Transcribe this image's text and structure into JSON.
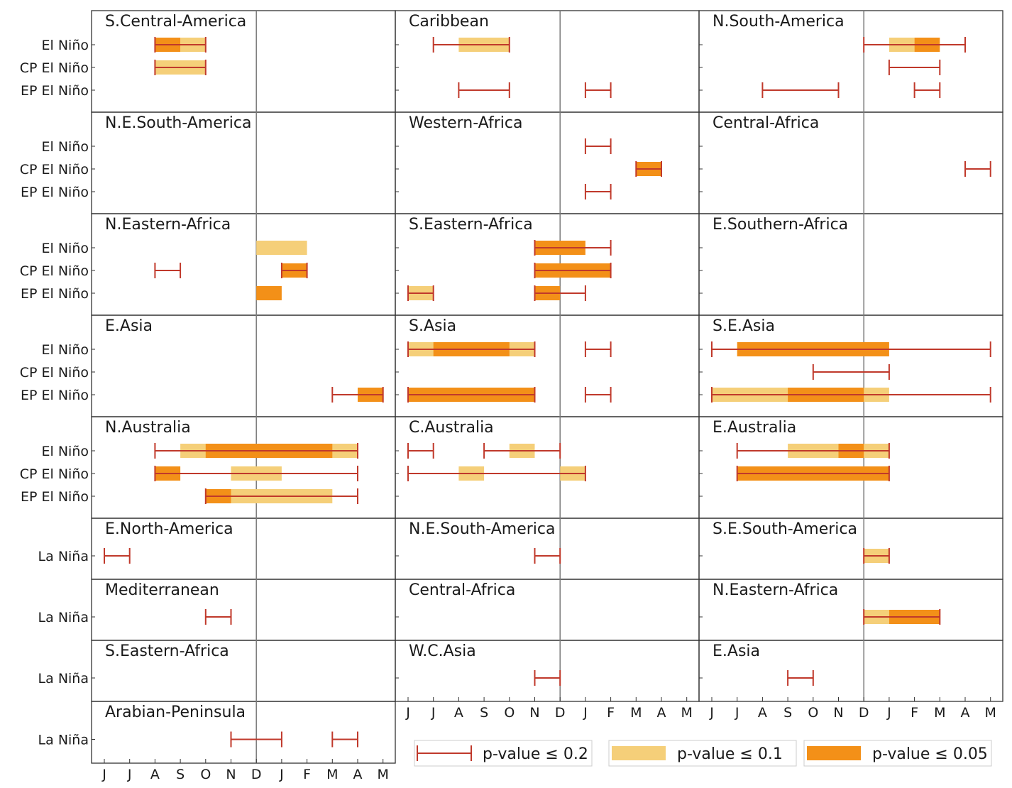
{
  "chart_data": {
    "type": "interval",
    "title": "",
    "x_axis": {
      "left_column_months": [
        "J",
        "J",
        "A",
        "S",
        "O",
        "N",
        "D",
        "J",
        "F",
        "M",
        "A",
        "M"
      ],
      "right_columns_months": [
        "J",
        "J",
        "A",
        "S",
        "O",
        "N",
        "D",
        "J",
        "F",
        "M",
        "A",
        "M"
      ]
    },
    "colors": {
      "p02": "#c0392b",
      "p01": "#f5cf79",
      "p005": "#f39018"
    },
    "legend": [
      {
        "key": "p02",
        "label": "p-value ≤ 0.2"
      },
      {
        "key": "p01",
        "label": "p-value ≤ 0.1"
      },
      {
        "key": "p005",
        "label": "p-value ≤ 0.05"
      }
    ],
    "panels": [
      {
        "row": 0,
        "col": 0,
        "title": "S.Central-America",
        "labels": [
          "El Niño",
          "CP El Niño",
          "EP El Niño"
        ],
        "p02": [
          [
            2,
            4
          ],
          [
            2,
            4
          ],
          null
        ],
        "p01": [
          [
            [
              3,
              4
            ]
          ],
          [
            [
              2,
              4
            ]
          ],
          []
        ],
        "p005": [
          [
            [
              2,
              3
            ]
          ],
          [],
          []
        ]
      },
      {
        "row": 0,
        "col": 1,
        "title": "Caribbean",
        "labels": [
          "El Niño",
          "CP El Niño",
          "EP El Niño"
        ],
        "p02": [
          [
            1,
            4
          ],
          null,
          [
            [
              2,
              4
            ],
            [
              7,
              8
            ]
          ]
        ],
        "p01": [
          [
            [
              2,
              4
            ]
          ],
          [],
          []
        ],
        "p005": [
          [],
          [],
          []
        ]
      },
      {
        "row": 0,
        "col": 2,
        "title": "N.South-America",
        "labels": [
          "El Niño",
          "CP El Niño",
          "EP El Niño"
        ],
        "p02": [
          [
            6,
            10
          ],
          [
            7,
            9
          ],
          [
            [
              2,
              5
            ],
            [
              8,
              9
            ]
          ]
        ],
        "p01": [
          [
            [
              7,
              8
            ]
          ],
          [],
          []
        ],
        "p005": [
          [
            [
              8,
              9
            ]
          ],
          [],
          []
        ]
      },
      {
        "row": 1,
        "col": 0,
        "title": "N.E.South-America",
        "labels": [
          "El Niño",
          "CP El Niño",
          "EP El Niño"
        ],
        "p02": [
          null,
          null,
          null
        ],
        "p01": [
          [],
          [],
          []
        ],
        "p005": [
          [],
          [],
          []
        ]
      },
      {
        "row": 1,
        "col": 1,
        "title": "Western-Africa",
        "labels": [
          "El Niño",
          "CP El Niño",
          "EP El Niño"
        ],
        "p02": [
          [
            7,
            8
          ],
          [
            9,
            10
          ],
          [
            7,
            8
          ]
        ],
        "p01": [
          [],
          [],
          []
        ],
        "p005": [
          [],
          [
            [
              9,
              10
            ]
          ],
          []
        ]
      },
      {
        "row": 1,
        "col": 2,
        "title": "Central-Africa",
        "labels": [
          "El Niño",
          "CP El Niño",
          "EP El Niño"
        ],
        "p02": [
          null,
          [
            10,
            11
          ],
          null
        ],
        "p01": [
          [],
          [],
          []
        ],
        "p005": [
          [],
          [],
          []
        ]
      },
      {
        "row": 2,
        "col": 0,
        "title": "N.Eastern-Africa",
        "labels": [
          "El Niño",
          "CP El Niño",
          "EP El Niño"
        ],
        "p02": [
          null,
          [
            [
              2,
              3
            ],
            [
              7,
              8
            ]
          ],
          null
        ],
        "p01": [
          [
            [
              6,
              8
            ]
          ],
          [],
          []
        ],
        "p005": [
          [],
          [
            [
              7,
              8
            ]
          ],
          [
            [
              6,
              7
            ]
          ]
        ]
      },
      {
        "row": 2,
        "col": 1,
        "title": "S.Eastern-Africa",
        "labels": [
          "El Niño",
          "CP El Niño",
          "EP El Niño"
        ],
        "p02": [
          [
            5,
            8
          ],
          [
            5,
            8
          ],
          [
            [
              0,
              1
            ],
            [
              5,
              7
            ]
          ]
        ],
        "p01": [
          [],
          [],
          [
            [
              0,
              1
            ]
          ]
        ],
        "p005": [
          [
            [
              5,
              7
            ]
          ],
          [
            [
              5,
              8
            ]
          ],
          [
            [
              5,
              6
            ]
          ]
        ]
      },
      {
        "row": 2,
        "col": 2,
        "title": "E.Southern-Africa",
        "labels": [
          "El Niño",
          "CP El Niño",
          "EP El Niño"
        ],
        "p02": [
          null,
          null,
          null
        ],
        "p01": [
          [],
          [],
          []
        ],
        "p005": [
          [],
          [],
          []
        ]
      },
      {
        "row": 3,
        "col": 0,
        "title": "E.Asia",
        "labels": [
          "El Niño",
          "CP El Niño",
          "EP El Niño"
        ],
        "p02": [
          null,
          null,
          [
            9,
            11
          ]
        ],
        "p01": [
          [],
          [],
          []
        ],
        "p005": [
          [],
          [],
          [
            [
              10,
              11
            ]
          ]
        ]
      },
      {
        "row": 3,
        "col": 1,
        "title": "S.Asia",
        "labels": [
          "El Niño",
          "CP El Niño",
          "EP El Niño"
        ],
        "p02": [
          [
            [
              0,
              5
            ],
            [
              7,
              8
            ]
          ],
          null,
          [
            [
              0,
              5
            ],
            [
              7,
              8
            ]
          ]
        ],
        "p01": [
          [
            [
              0,
              5
            ]
          ],
          [],
          []
        ],
        "p005": [
          [
            [
              1,
              4
            ]
          ],
          [],
          [
            [
              0,
              5
            ]
          ]
        ]
      },
      {
        "row": 3,
        "col": 2,
        "title": "S.E.Asia",
        "labels": [
          "El Niño",
          "CP El Niño",
          "EP El Niño"
        ],
        "p02": [
          [
            0,
            11
          ],
          [
            4,
            7
          ],
          [
            0,
            11
          ]
        ],
        "p01": [
          [],
          [],
          [
            [
              0,
              7
            ]
          ]
        ],
        "p005": [
          [
            [
              1,
              7
            ]
          ],
          [],
          [
            [
              3,
              6
            ]
          ]
        ]
      },
      {
        "row": 4,
        "col": 0,
        "title": "N.Australia",
        "labels": [
          "El Niño",
          "CP El Niño",
          "EP El Niño"
        ],
        "p02": [
          [
            2,
            10
          ],
          [
            2,
            10
          ],
          [
            4,
            10
          ]
        ],
        "p01": [
          [
            [
              3,
              10
            ]
          ],
          [
            [
              5,
              7
            ]
          ],
          [
            [
              5,
              9
            ]
          ]
        ],
        "p005": [
          [
            [
              4,
              9
            ]
          ],
          [
            [
              2,
              3
            ]
          ],
          [
            [
              4,
              5
            ]
          ]
        ]
      },
      {
        "row": 4,
        "col": 1,
        "title": "C.Australia",
        "labels": [
          "El Niño",
          "CP El Niño",
          "EP El Niño"
        ],
        "p02": [
          [
            [
              0,
              1
            ],
            [
              3,
              6
            ]
          ],
          [
            0,
            7
          ],
          null
        ],
        "p01": [
          [
            [
              4,
              5
            ]
          ],
          [
            [
              2,
              3
            ],
            [
              6,
              7
            ]
          ],
          []
        ],
        "p005": [
          [],
          [],
          []
        ]
      },
      {
        "row": 4,
        "col": 2,
        "title": "E.Australia",
        "labels": [
          "El Niño",
          "CP El Niño",
          "EP El Niño"
        ],
        "p02": [
          [
            1,
            7
          ],
          [
            1,
            7
          ],
          null
        ],
        "p01": [
          [
            [
              3,
              7
            ]
          ],
          [],
          []
        ],
        "p005": [
          [
            [
              5,
              6
            ]
          ],
          [
            [
              1,
              7
            ]
          ],
          []
        ]
      },
      {
        "row": 5,
        "col": 0,
        "title": "E.North-America",
        "labels": [
          "La Niña"
        ],
        "p02": [
          [
            0,
            1
          ]
        ],
        "p01": [
          []
        ],
        "p005": [
          []
        ]
      },
      {
        "row": 5,
        "col": 1,
        "title": "N.E.South-America",
        "labels": [
          "La Niña"
        ],
        "p02": [
          [
            5,
            6
          ]
        ],
        "p01": [
          []
        ],
        "p005": [
          []
        ]
      },
      {
        "row": 5,
        "col": 2,
        "title": "S.E.South-America",
        "labels": [
          "La Niña"
        ],
        "p02": [
          [
            6,
            7
          ]
        ],
        "p01": [
          [
            [
              6,
              7
            ]
          ]
        ],
        "p005": [
          []
        ]
      },
      {
        "row": 6,
        "col": 0,
        "title": "Mediterranean",
        "labels": [
          "La Niña"
        ],
        "p02": [
          [
            4,
            5
          ]
        ],
        "p01": [
          []
        ],
        "p005": [
          []
        ]
      },
      {
        "row": 6,
        "col": 1,
        "title": "Central-Africa",
        "labels": [
          "La Niña"
        ],
        "p02": [
          null
        ],
        "p01": [
          []
        ],
        "p005": [
          []
        ]
      },
      {
        "row": 6,
        "col": 2,
        "title": "N.Eastern-Africa",
        "labels": [
          "La Niña"
        ],
        "p02": [
          [
            6,
            9
          ]
        ],
        "p01": [
          [
            [
              6,
              7
            ]
          ]
        ],
        "p005": [
          [
            [
              7,
              9
            ]
          ]
        ]
      },
      {
        "row": 7,
        "col": 0,
        "title": "S.Eastern-Africa",
        "labels": [
          "La Niña"
        ],
        "p02": [
          null
        ],
        "p01": [
          []
        ],
        "p005": [
          []
        ]
      },
      {
        "row": 7,
        "col": 1,
        "title": "W.C.Asia",
        "labels": [
          "La Niña"
        ],
        "p02": [
          [
            5,
            6
          ]
        ],
        "p01": [
          []
        ],
        "p005": [
          []
        ]
      },
      {
        "row": 7,
        "col": 2,
        "title": "E.Asia",
        "labels": [
          "La Niña"
        ],
        "p02": [
          [
            3,
            4
          ]
        ],
        "p01": [
          []
        ],
        "p005": [
          []
        ]
      },
      {
        "row": 8,
        "col": 0,
        "title": "Arabian-Peninsula",
        "labels": [
          "La Niña"
        ],
        "p02": [
          [
            [
              5,
              7
            ],
            [
              9,
              10
            ]
          ]
        ],
        "p01": [
          []
        ],
        "p005": [
          []
        ]
      }
    ]
  }
}
